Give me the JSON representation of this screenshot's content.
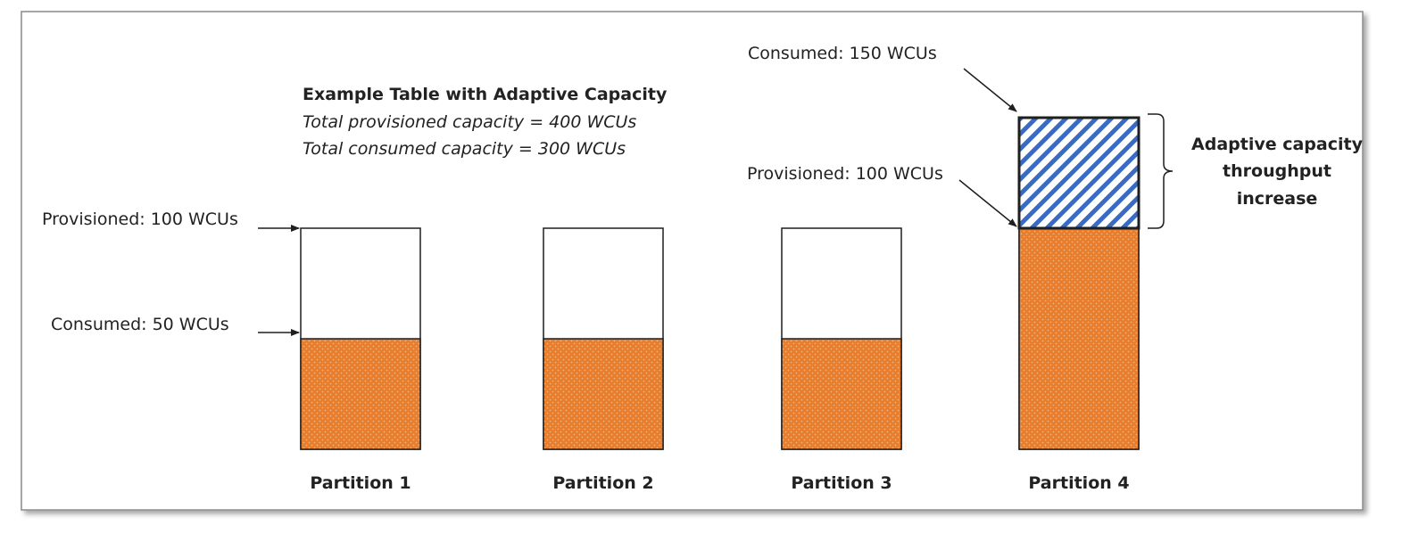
{
  "colors": {
    "consumed_fill": "#E67E2E",
    "consumed_dot": "#F3B27A",
    "adaptive_stripe": "#3A6BC4",
    "outline": "#1f1f1f"
  },
  "info": {
    "heading": "Example Table with Adaptive Capacity",
    "line1": "Total provisioned capacity = 400 WCUs",
    "line2": "Total consumed capacity = 300 WCUs"
  },
  "units": "WCUs",
  "partitions": [
    {
      "label": "Partition 1",
      "provisioned": 100,
      "consumed": 50
    },
    {
      "label": "Partition 2",
      "provisioned": 100,
      "consumed": 50
    },
    {
      "label": "Partition 3",
      "provisioned": 100,
      "consumed": 50
    },
    {
      "label": "Partition 4",
      "provisioned": 100,
      "consumed": 150
    }
  ],
  "annotations": {
    "p1_provisioned": "Provisioned: 100 WCUs",
    "p1_consumed": "Consumed: 50 WCUs",
    "p4_consumed": "Consumed: 150 WCUs",
    "p4_provisioned": "Provisioned: 100 WCUs"
  },
  "adaptive": {
    "line1": "Adaptive capacity",
    "line2": "throughput",
    "line3": "increase"
  }
}
